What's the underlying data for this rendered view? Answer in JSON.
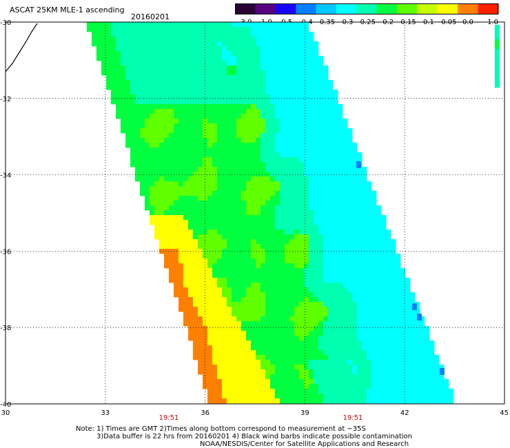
{
  "header": {
    "title": "ASCAT 25KM MLE-1 ascending",
    "date": "20160201"
  },
  "colorbar": {
    "labels": [
      "-3.0",
      "-1.0",
      "-0.5",
      "-0.4",
      "-0.35",
      "-0.3",
      "-0.25",
      "-0.2",
      "-0.15",
      "-0.1",
      "-0.05",
      "0.0",
      "1.0"
    ],
    "colors": [
      "#2a0033",
      "#55007f",
      "#1a00ff",
      "#0080ff",
      "#00c8ff",
      "#00ffff",
      "#00ffb0",
      "#00ff40",
      "#60ff00",
      "#c8ff00",
      "#ffff00",
      "#ff8000",
      "#ff2000"
    ]
  },
  "map": {
    "lat_labels": [
      "-30",
      "-32",
      "-34",
      "-36",
      "-38",
      "-40"
    ],
    "lon_labels": [
      "30",
      "33",
      "36",
      "39",
      "42",
      "45"
    ],
    "lat_range": [
      -40,
      -30
    ],
    "lon_range": [
      30,
      45
    ],
    "grid": true,
    "swath_colors": {
      "cyan": "#00ffff",
      "aqua_green": "#00ffb0",
      "green": "#00ff40",
      "lime": "#60ff00",
      "yellow": "#ffff00",
      "orange": "#ff8000",
      "blue": "#0080ff"
    }
  },
  "times": [
    "19:51",
    "19:51"
  ],
  "notes": {
    "line1": "Note: 1) Times are GMT 2)Times along bottom correspond to measurement at ~35S",
    "line2": "3)Data buffer is 22 hrs from 20160201 4) Black wind barbs indicate possible contamination",
    "line3": "NOAA/NESDIS/Center for Satellite Applications and Research"
  }
}
